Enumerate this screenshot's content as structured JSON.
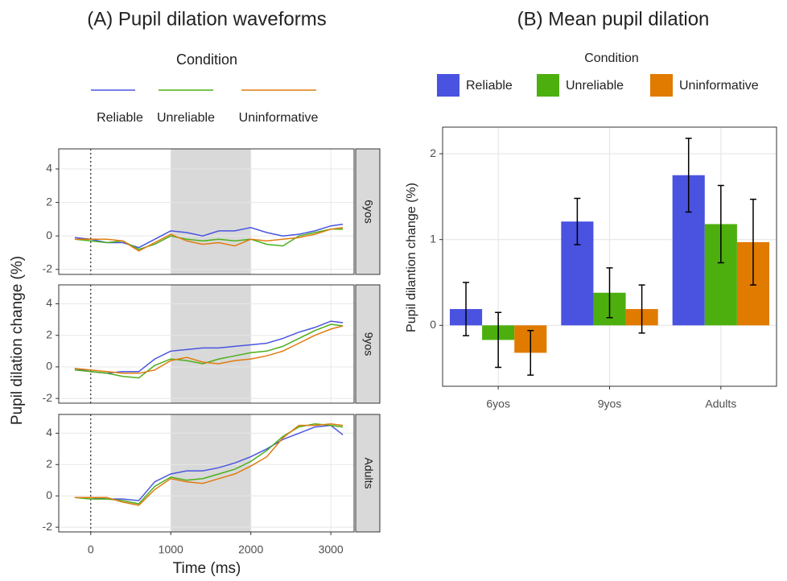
{
  "chart_data": [
    {
      "type": "line",
      "title": "(A) Pupil dilation waveforms",
      "legend_title": "Condition",
      "x_label": "Time (ms)",
      "y_label": "Pupil dilation change (%)",
      "facets": [
        "6yos",
        "9yos",
        "Adults"
      ],
      "x": [
        -200,
        0,
        200,
        400,
        600,
        800,
        1000,
        1200,
        1400,
        1600,
        1800,
        2000,
        2200,
        2400,
        2600,
        2800,
        3000,
        3150
      ],
      "xlim": [
        -400,
        3290
      ],
      "xticks": [
        0,
        1000,
        2000,
        3000
      ],
      "ylim": [
        -2.3,
        5.2
      ],
      "yticks": [
        -2,
        0,
        2,
        4
      ],
      "shade": [
        1000,
        2000
      ],
      "vline": 0,
      "grid": true,
      "series": [
        {
          "name": "Reliable",
          "color": "#4a55e0",
          "values": [
            [
              -0.1,
              -0.2,
              -0.4,
              -0.4,
              -0.7,
              -0.2,
              0.3,
              0.2,
              0.0,
              0.3,
              0.3,
              0.5,
              0.2,
              0.0,
              0.1,
              0.3,
              0.6,
              0.7
            ],
            [
              -0.1,
              -0.3,
              -0.4,
              -0.3,
              -0.3,
              0.5,
              1.0,
              1.1,
              1.2,
              1.2,
              1.3,
              1.4,
              1.5,
              1.8,
              2.2,
              2.5,
              2.9,
              2.8
            ],
            [
              -0.1,
              -0.1,
              -0.2,
              -0.2,
              -0.3,
              0.9,
              1.4,
              1.6,
              1.6,
              1.8,
              2.1,
              2.5,
              3.0,
              3.6,
              4.0,
              4.4,
              4.5,
              3.9
            ]
          ]
        },
        {
          "name": "Unreliable",
          "color": "#4caf1a",
          "values": [
            [
              -0.2,
              -0.3,
              -0.4,
              -0.3,
              -0.8,
              -0.5,
              0.0,
              -0.2,
              -0.3,
              -0.2,
              -0.3,
              -0.2,
              -0.5,
              -0.6,
              0.0,
              0.2,
              0.4,
              0.4
            ],
            [
              -0.2,
              -0.3,
              -0.4,
              -0.6,
              -0.7,
              0.1,
              0.5,
              0.4,
              0.2,
              0.5,
              0.7,
              0.9,
              1.0,
              1.3,
              1.8,
              2.3,
              2.7,
              2.6
            ],
            [
              -0.1,
              -0.2,
              -0.2,
              -0.3,
              -0.5,
              0.6,
              1.2,
              1.0,
              1.1,
              1.4,
              1.7,
              2.2,
              2.9,
              3.8,
              4.4,
              4.6,
              4.5,
              4.4
            ]
          ]
        },
        {
          "name": "Uninformative",
          "color": "#e07b10",
          "values": [
            [
              -0.2,
              -0.2,
              -0.2,
              -0.3,
              -0.9,
              -0.4,
              0.1,
              -0.3,
              -0.5,
              -0.4,
              -0.6,
              -0.2,
              -0.3,
              -0.2,
              -0.1,
              0.1,
              0.4,
              0.5
            ],
            [
              -0.1,
              -0.2,
              -0.3,
              -0.4,
              -0.4,
              -0.2,
              0.4,
              0.6,
              0.3,
              0.2,
              0.4,
              0.5,
              0.7,
              1.0,
              1.5,
              2.0,
              2.4,
              2.6
            ],
            [
              -0.1,
              -0.1,
              -0.1,
              -0.4,
              -0.6,
              0.4,
              1.1,
              0.9,
              0.8,
              1.1,
              1.4,
              1.9,
              2.5,
              3.7,
              4.5,
              4.5,
              4.6,
              4.5
            ]
          ]
        }
      ]
    },
    {
      "type": "bar",
      "title": "(B) Mean pupil dilation",
      "legend_title": "Condition",
      "y_label": "Pupil dilantion change (%)",
      "categories": [
        "6yos",
        "9yos",
        "Adults"
      ],
      "ylim": [
        -0.71,
        2.31
      ],
      "yticks": [
        0,
        1,
        2
      ],
      "grid": true,
      "series": [
        {
          "name": "Reliable",
          "color": "#4a52e0",
          "values": [
            0.19,
            1.21,
            1.75
          ],
          "errors": [
            0.31,
            0.27,
            0.43
          ]
        },
        {
          "name": "Unreliable",
          "color": "#4caf0e",
          "values": [
            -0.17,
            0.38,
            1.18
          ],
          "errors": [
            0.32,
            0.29,
            0.45
          ]
        },
        {
          "name": "Uninformative",
          "color": "#e07b00",
          "values": [
            -0.32,
            0.19,
            0.97
          ],
          "errors": [
            0.26,
            0.28,
            0.5
          ]
        }
      ]
    }
  ]
}
